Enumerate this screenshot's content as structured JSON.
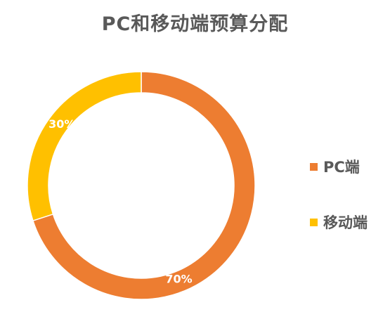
{
  "chart_data": {
    "type": "pie",
    "title": "PC和移动端预算分配",
    "donut": true,
    "labels": [
      "PC端",
      "移动端"
    ],
    "values": [
      70,
      30
    ],
    "value_labels": [
      "70%",
      "30%"
    ],
    "colors": [
      "#ED7D31",
      "#FFC000"
    ],
    "legend_position": "right",
    "start_angle": "top, clockwise"
  }
}
